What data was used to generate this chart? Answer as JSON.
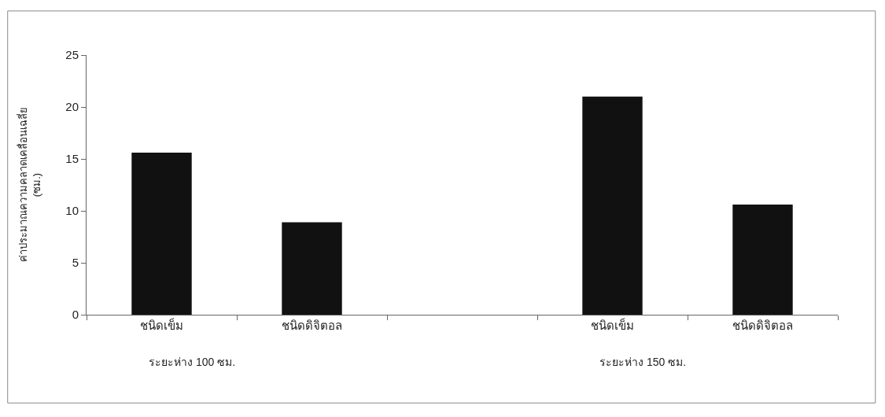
{
  "chart_data": {
    "type": "bar",
    "ylabel": "ค่าประมาณความคลาดเคลื่อนเฉลี่ย\n(ซม.)",
    "categories": [
      "ชนิดเข็ม",
      "ชนิดดิจิตอล",
      null,
      "ชนิดเข็ม",
      "ชนิดดิจิตอล"
    ],
    "values": [
      15.6,
      8.9,
      null,
      21.0,
      10.6
    ],
    "color": "#111111",
    "ylim": [
      0,
      25
    ],
    "yticks": [
      0,
      5,
      10,
      15,
      20,
      25
    ],
    "annotations": [
      "ระยะห่าง 100 ซม.",
      "ระยะห่าง 150 ซม."
    ]
  }
}
